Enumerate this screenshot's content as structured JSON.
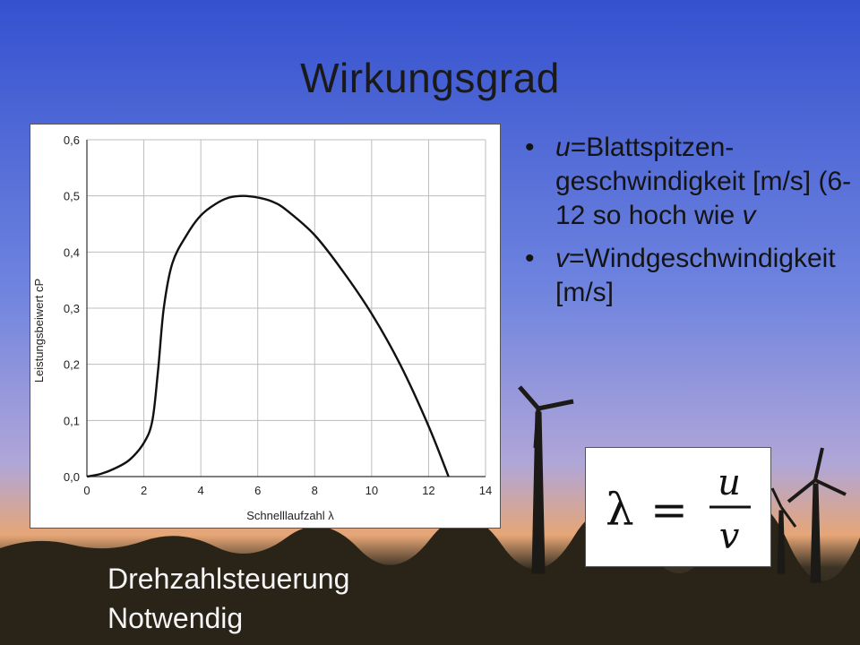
{
  "slide": {
    "title": "Wirkungsgrad",
    "bullets": [
      {
        "var": "u",
        "text": "=Blattspitzen-geschwindigkeit [m/s] (6-12 so hoch wie ",
        "var2": "v"
      },
      {
        "var": "v",
        "text": "=Windgeschwindigkeit [m/s]"
      }
    ],
    "formula": {
      "lhs": "λ",
      "eq": "=",
      "numerator": "u",
      "denominator": "v"
    },
    "footer": [
      "Drehzahlsteuerung",
      "Notwendig"
    ]
  },
  "colors": {
    "sky_top": "#3f5fd8",
    "sky_mid": "#7d8ee0",
    "horizon": "#e8a070",
    "ground": "#2a2418",
    "curve": "#111111",
    "grid": "#bdbdbd"
  },
  "chart_data": {
    "type": "line",
    "xlabel": "Schnelllaufzahl λ",
    "ylabel": "Leistungsbeiwert cP",
    "xlim": [
      0,
      14
    ],
    "ylim": [
      0,
      0.6
    ],
    "x_ticks": [
      "0",
      "2",
      "4",
      "6",
      "8",
      "10",
      "12",
      "14"
    ],
    "y_ticks": [
      "0,0",
      "0,1",
      "0,2",
      "0,3",
      "0,4",
      "0,5",
      "0,6"
    ],
    "grid": true,
    "series": [
      {
        "x": [
          0,
          0.5,
          1,
          1.5,
          2,
          2.3,
          2.5,
          2.7,
          3,
          3.5,
          4,
          4.5,
          5,
          5.5,
          6,
          6.5,
          7,
          8,
          9,
          10,
          11,
          12,
          12.7
        ],
        "y": [
          0,
          0.005,
          0.015,
          0.03,
          0.06,
          0.1,
          0.19,
          0.3,
          0.38,
          0.43,
          0.465,
          0.485,
          0.497,
          0.5,
          0.497,
          0.49,
          0.475,
          0.43,
          0.365,
          0.29,
          0.2,
          0.09,
          0.0
        ]
      }
    ]
  }
}
